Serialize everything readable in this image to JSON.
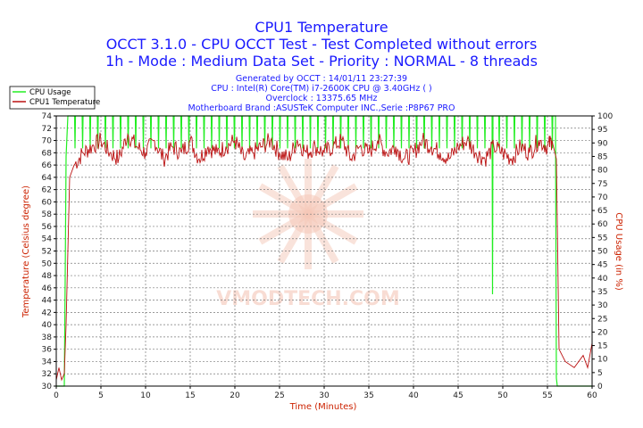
{
  "chart_data": {
    "type": "line",
    "title": "CPU1 Temperature",
    "subtitle_lines": [
      "OCCT 3.1.0 - CPU OCCT Test - Test Completed without errors",
      "1h - Mode : Medium Data Set - Priority : NORMAL - 8 threads"
    ],
    "info_lines": [
      "Generated by OCCT : 14/01/11 23:27:39",
      "CPU : Intel(R) Core(TM) i7-2600K CPU @ 3.40GHz (  )",
      "Overclock : 13375.65 MHz",
      "Motherboard Brand :ASUSTeK Computer INC.,Serie :P8P67 PRO"
    ],
    "xlabel": "Time (Minutes)",
    "ylabel": "Temperature (Celsius degree)",
    "y2label": "CPU Usage (in %)",
    "xlim": [
      0,
      60
    ],
    "ylim": [
      30,
      74
    ],
    "y2lim": [
      0,
      100
    ],
    "xticks": [
      0,
      5,
      10,
      15,
      20,
      25,
      30,
      35,
      40,
      45,
      50,
      55,
      60
    ],
    "yticks": [
      30,
      32,
      34,
      36,
      38,
      40,
      42,
      44,
      46,
      48,
      50,
      52,
      54,
      56,
      58,
      60,
      62,
      64,
      66,
      68,
      70,
      72,
      74
    ],
    "y2ticks": [
      0,
      5,
      10,
      15,
      20,
      25,
      30,
      35,
      40,
      45,
      50,
      55,
      60,
      65,
      70,
      75,
      80,
      85,
      90,
      95,
      100
    ],
    "grid": true,
    "legend_position": "top-left",
    "watermark": "VMODTECH.COM",
    "series": [
      {
        "name": "CPU Usage",
        "color": "#22ee22",
        "axis": "right",
        "x": [
          0,
          0.9,
          1.0,
          1.1,
          1.3,
          1.5,
          48.8,
          48.85,
          48.9,
          49.0,
          55.9,
          56.0,
          56.1,
          60
        ],
        "y": [
          0,
          0,
          40,
          85,
          100,
          100,
          100,
          34,
          100,
          100,
          100,
          3,
          0,
          0
        ],
        "note_spikes": "drops to ~88 regularly between 1.5 and 55.9 min"
      },
      {
        "name": "CPU1 Temperature",
        "color": "#bb1111",
        "axis": "left",
        "x": [
          0,
          0.3,
          0.6,
          0.9,
          1.1,
          1.5,
          2,
          3,
          4,
          5,
          6,
          7,
          8,
          9,
          10,
          11,
          12,
          13,
          14,
          15,
          16,
          17,
          18,
          19,
          20,
          21,
          22,
          23,
          24,
          25,
          26,
          27,
          28,
          29,
          30,
          31,
          32,
          33,
          34,
          35,
          36,
          37,
          38,
          39,
          40,
          41,
          42,
          43,
          44,
          45,
          46,
          47,
          48,
          49,
          50,
          51,
          52,
          53,
          54,
          55,
          55.5,
          56,
          56.3,
          57,
          58,
          59,
          59.5,
          60
        ],
        "y": [
          31,
          33,
          31,
          32,
          40,
          64,
          66,
          68,
          69,
          70,
          68,
          67,
          71,
          69,
          68,
          70,
          67,
          69,
          68,
          70,
          67,
          69,
          68,
          69,
          70,
          67,
          68,
          69,
          70,
          68,
          67,
          70,
          68,
          69,
          68,
          69,
          70,
          67,
          69,
          68,
          70,
          68,
          69,
          67,
          68,
          70,
          69,
          68,
          67,
          69,
          70,
          68,
          67,
          69,
          68,
          67,
          69,
          68,
          70,
          69,
          70,
          67,
          36,
          34,
          33,
          35,
          33,
          37
        ]
      }
    ]
  }
}
